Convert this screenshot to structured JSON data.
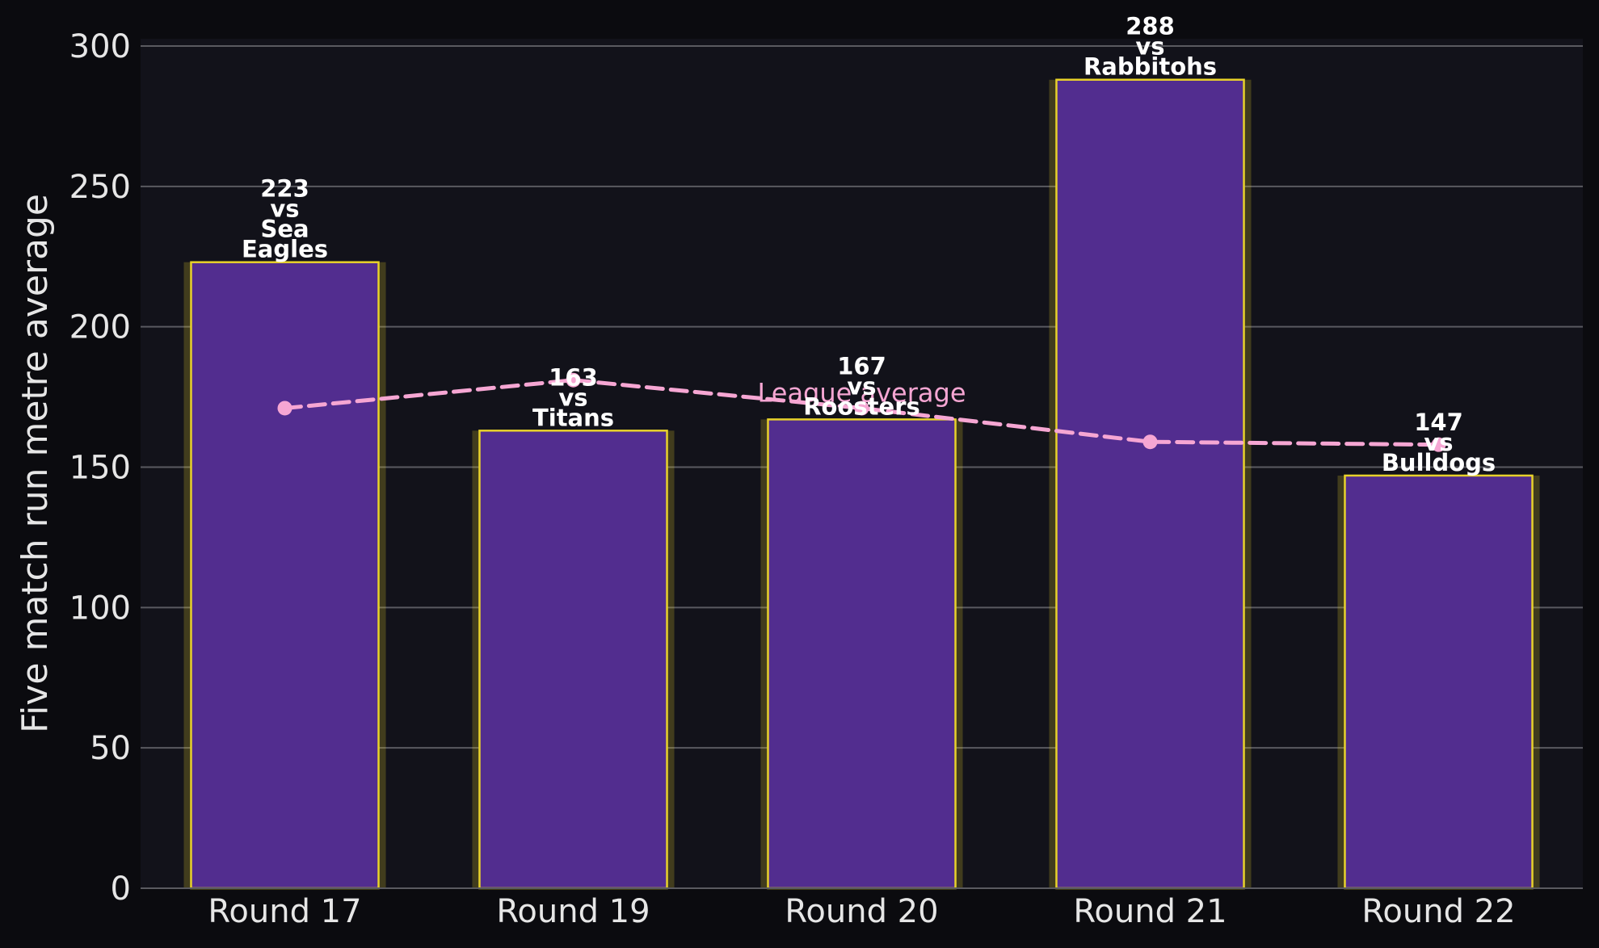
{
  "chart_data": {
    "type": "bar",
    "title": "",
    "xlabel": "",
    "ylabel": "Five match run metre average",
    "ylim": [
      0,
      300
    ],
    "yticks": [
      0,
      50,
      100,
      150,
      200,
      250,
      300
    ],
    "grid": "horizontal",
    "categories": [
      "Round 17",
      "Round 19",
      "Round 20",
      "Round 21",
      "Round 22"
    ],
    "series": [
      {
        "values": [
          223,
          163,
          167,
          288,
          147
        ],
        "bar_labels": [
          [
            "223",
            "vs",
            "Sea",
            "Eagles"
          ],
          [
            "163",
            "vs",
            "Titans"
          ],
          [
            "167",
            "vs",
            "Roosters"
          ],
          [
            "288",
            "vs",
            "Rabbitohs"
          ],
          [
            "147",
            "vs",
            "Bulldogs"
          ]
        ],
        "color": "#522d8f",
        "edge_color": "#e8d22b"
      },
      {
        "name": "League average",
        "type": "line",
        "style": "dashed",
        "values": [
          171,
          181,
          171,
          159,
          158
        ],
        "color": "#f6a6d3"
      }
    ],
    "colors": {
      "background": "#0b0b0f",
      "plot_background": "#12121a",
      "grid": "#5a5a60",
      "text": "#e6e6e6"
    }
  }
}
